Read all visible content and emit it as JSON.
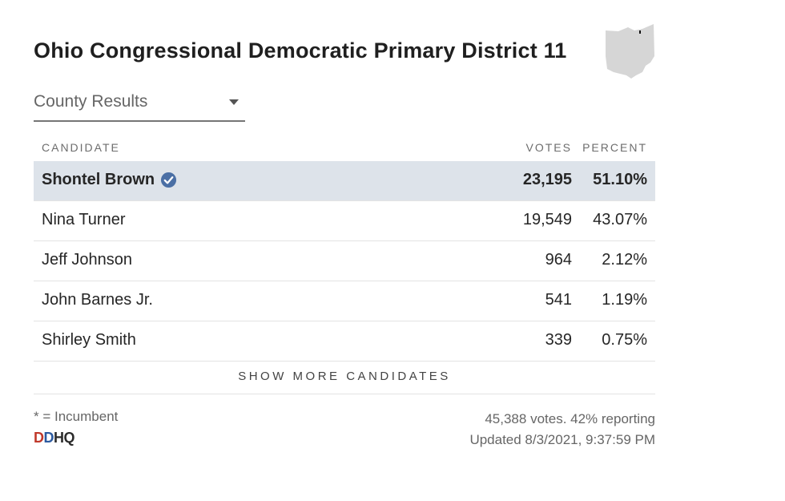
{
  "widget": {
    "title": "Ohio Congressional Democratic Primary District 11",
    "map_icon": "ohio-state-map-icon",
    "dropdown": {
      "label": "County Results",
      "icon": "caret-down-icon"
    },
    "table": {
      "headers": {
        "candidate": "CANDIDATE",
        "votes": "VOTES",
        "percent": "PERCENT"
      },
      "rows": [
        {
          "name": "Shontel Brown",
          "votes": "23,195",
          "percent": "51.10%",
          "winner": true
        },
        {
          "name": "Nina Turner",
          "votes": "19,549",
          "percent": "43.07%",
          "winner": false
        },
        {
          "name": "Jeff Johnson",
          "votes": "964",
          "percent": "2.12%",
          "winner": false
        },
        {
          "name": "John Barnes Jr.",
          "votes": "541",
          "percent": "1.19%",
          "winner": false
        },
        {
          "name": "Shirley Smith",
          "votes": "339",
          "percent": "0.75%",
          "winner": false
        }
      ],
      "show_more": "SHOW MORE CANDIDATES"
    },
    "footer": {
      "incumbent_note": "* = Incumbent",
      "logo_text": {
        "d1": "D",
        "d2": "D",
        "rest": "HQ"
      },
      "votes_reporting": "45,388 votes. 42% reporting",
      "updated": "Updated 8/3/2021, 9:37:59 PM"
    },
    "colors": {
      "winner_row_bg": "#dde3ea",
      "check_badge": "#4a6fa5",
      "map_fill": "#d6d6d6"
    }
  }
}
